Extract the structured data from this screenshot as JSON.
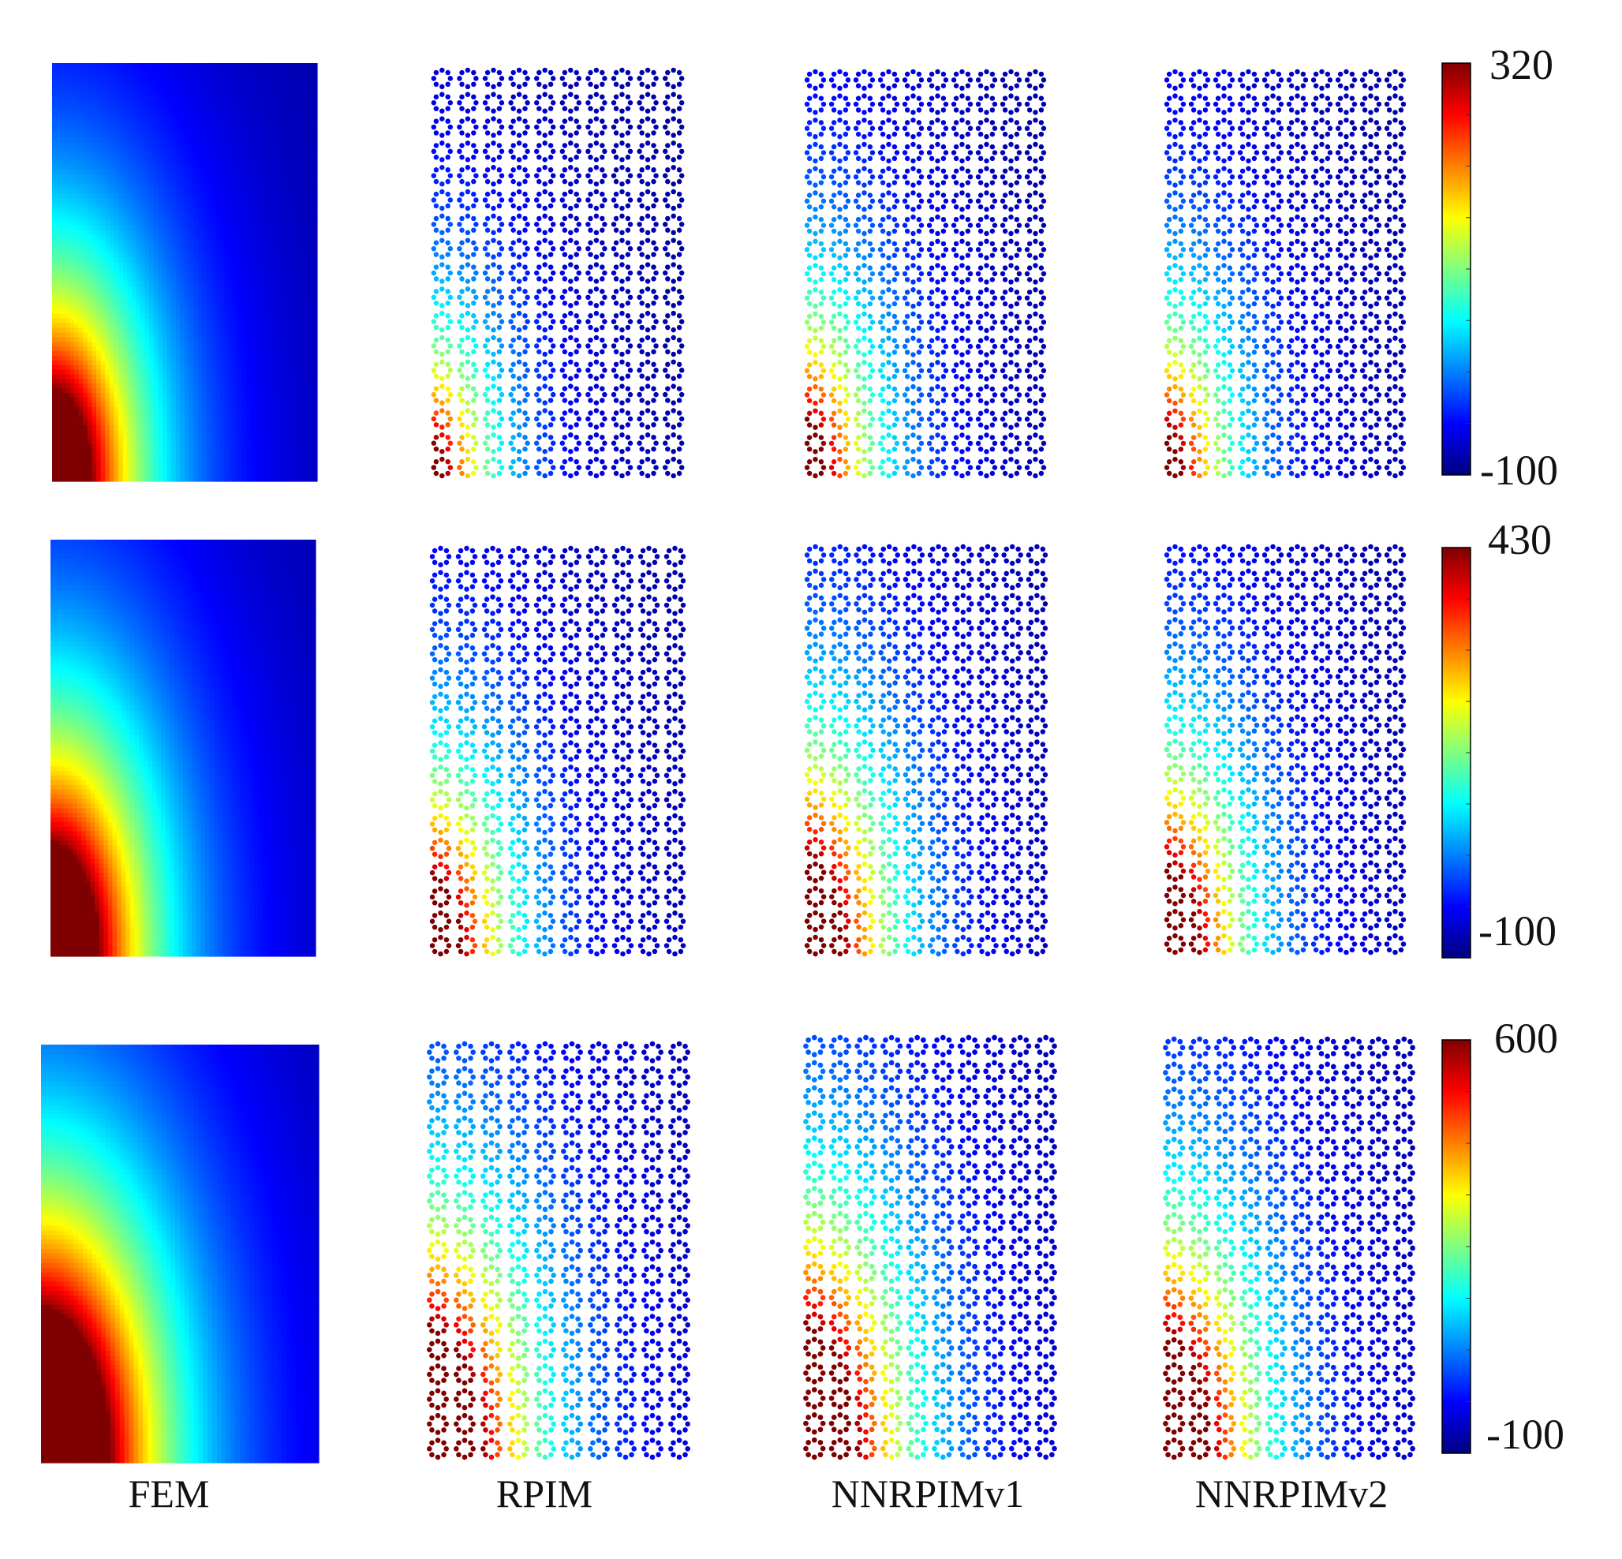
{
  "figure": {
    "method_labels": [
      "FEM",
      "RPIM",
      "NNRPIMv1",
      "NNRPIMv2"
    ]
  },
  "colormap": {
    "name": "jet",
    "stops": [
      "#00007f",
      "#0000ff",
      "#007fff",
      "#00ffff",
      "#7fff7f",
      "#ffff00",
      "#ff7f00",
      "#ff0000",
      "#7f0000"
    ]
  },
  "chart_data": {
    "type": "heatmap",
    "description_rows": "Each row is one load case; columns are FEM (continuous field) and three meshless nodal fields (RPIM, NNRPIMv1, NNRPIMv2).",
    "rows": [
      {
        "colorbar": {
          "min": -100,
          "max": 320,
          "min_label": "-100",
          "max_label": "320"
        },
        "methods": [
          {
            "name": "FEM",
            "kind": "field",
            "hot_extent": 0.18,
            "decay": 1.0
          },
          {
            "name": "RPIM",
            "kind": "nodes",
            "hot_extent": 0.08,
            "decay": 1.25
          },
          {
            "name": "NNRPIMv1",
            "kind": "nodes",
            "hot_extent": 0.12,
            "decay": 1.1
          },
          {
            "name": "NNRPIMv2",
            "kind": "nodes",
            "hot_extent": 0.1,
            "decay": 1.15
          }
        ]
      },
      {
        "colorbar": {
          "min": -100,
          "max": 430,
          "min_label": "-100",
          "max_label": "430"
        },
        "methods": [
          {
            "name": "FEM",
            "kind": "field",
            "hot_extent": 0.22,
            "decay": 0.95
          },
          {
            "name": "RPIM",
            "kind": "nodes",
            "hot_extent": 0.16,
            "decay": 1.15
          },
          {
            "name": "NNRPIMv1",
            "kind": "nodes",
            "hot_extent": 0.2,
            "decay": 1.05
          },
          {
            "name": "NNRPIMv2",
            "kind": "nodes",
            "hot_extent": 0.18,
            "decay": 1.1
          }
        ]
      },
      {
        "colorbar": {
          "min": -100,
          "max": 600,
          "min_label": "-100",
          "max_label": "600"
        },
        "methods": [
          {
            "name": "FEM",
            "kind": "field",
            "hot_extent": 0.3,
            "decay": 0.9
          },
          {
            "name": "RPIM",
            "kind": "nodes",
            "hot_extent": 0.26,
            "decay": 1.0
          },
          {
            "name": "NNRPIMv1",
            "kind": "nodes",
            "hot_extent": 0.26,
            "decay": 1.0
          },
          {
            "name": "NNRPIMv2",
            "kind": "nodes",
            "hot_extent": 0.24,
            "decay": 1.05
          }
        ]
      }
    ]
  }
}
